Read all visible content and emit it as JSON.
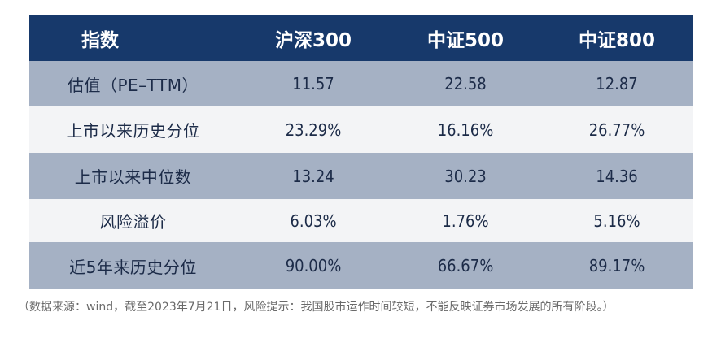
{
  "chart_data": {
    "type": "table",
    "columns": [
      "指数",
      "沪深300",
      "中证500",
      "中证800"
    ],
    "rows": [
      {
        "label": "估值（PE–TTM）",
        "values": [
          "11.57",
          "22.58",
          "12.87"
        ]
      },
      {
        "label": "上市以来历史分位",
        "values": [
          "23.29%",
          "16.16%",
          "26.77%"
        ]
      },
      {
        "label": "上市以来中位数",
        "values": [
          "13.24",
          "30.23",
          "14.36"
        ]
      },
      {
        "label": "风险溢价",
        "values": [
          "6.03%",
          "1.76%",
          "5.16%"
        ]
      },
      {
        "label": "近5年来历史分位",
        "values": [
          "90.00%",
          "66.67%",
          "89.17%"
        ]
      }
    ]
  },
  "note": "（数据来源：wind，截至2023年7月21日，风险提示：我国股市运作时间较短，不能反映证券市场发展的所有阶段。）",
  "colors": {
    "header_bg": "#17396b",
    "shaded_row": "#a5b1c4",
    "light_row": "#f3f4f6"
  }
}
